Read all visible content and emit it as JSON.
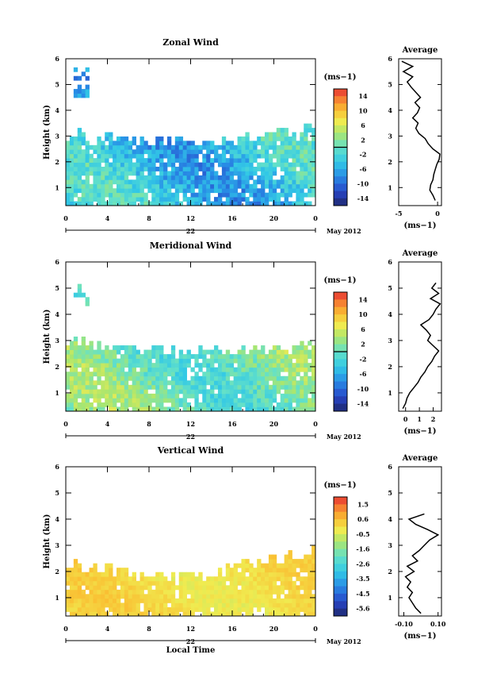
{
  "chart_data": [
    {
      "type": "heatmap",
      "title": "Zonal Wind",
      "ylabel": "Height (km)",
      "x_ticks": [
        "0",
        "4",
        "8",
        "12",
        "16",
        "20",
        "0"
      ],
      "y_ticks": [
        "1",
        "2",
        "3",
        "4",
        "5",
        "6"
      ],
      "xlim": [
        0,
        24
      ],
      "ylim": [
        0.3,
        6
      ],
      "date_label": "22",
      "month_label": "May 2012",
      "colorbar": {
        "unit": "(ms−1)",
        "tick_labels": [
          "14",
          "10",
          "6",
          "2",
          "-2",
          "-6",
          "-10",
          "-14"
        ],
        "min": -16,
        "max": 16,
        "zero_line": 0
      },
      "field": {
        "seed": 11,
        "base": -4,
        "amp": 6,
        "top_left": 3.1,
        "top_mid": 2.7,
        "top_right": 3.3,
        "sparse_patch": [
          0.6,
          2.0,
          4.5,
          5.6
        ]
      },
      "profile": {
        "title": "Average",
        "x_ticks": [
          "-5",
          "0"
        ],
        "xlim": [
          -5,
          0.5
        ],
        "unit": "(ms−1)",
        "heights": [
          0.5,
          0.7,
          0.9,
          1.1,
          1.3,
          1.5,
          1.7,
          1.9,
          2.1,
          2.3,
          2.5,
          2.7,
          2.9,
          3.1,
          3.3,
          3.5,
          3.7,
          3.9,
          4.1,
          4.3,
          4.5,
          4.7,
          4.9,
          5.1,
          5.3,
          5.5,
          5.7,
          5.9
        ],
        "values": [
          -0.3,
          -0.6,
          -1.0,
          -0.9,
          -0.6,
          -0.5,
          -0.3,
          -0.1,
          0.2,
          0.3,
          -0.6,
          -1.2,
          -1.6,
          -2.4,
          -2.8,
          -2.5,
          -3.2,
          -2.6,
          -2.3,
          -2.9,
          -2.2,
          -2.8,
          -3.4,
          -3.9,
          -3.2,
          -4.4,
          -3.2,
          -4.6
        ]
      }
    },
    {
      "type": "heatmap",
      "title": "Meridional Wind",
      "ylabel": "Height (km)",
      "x_ticks": [
        "0",
        "4",
        "8",
        "12",
        "16",
        "20",
        "0"
      ],
      "y_ticks": [
        "1",
        "2",
        "3",
        "4",
        "5",
        "6"
      ],
      "xlim": [
        0,
        24
      ],
      "ylim": [
        0.3,
        6
      ],
      "date_label": "22",
      "month_label": "May 2012",
      "colorbar": {
        "unit": "(ms−1)",
        "tick_labels": [
          "14",
          "10",
          "6",
          "2",
          "-2",
          "-6",
          "-10",
          "-14"
        ],
        "min": -16,
        "max": 16,
        "zero_line": 0
      },
      "field": {
        "seed": 27,
        "base": 1,
        "amp": 5,
        "top_left": 2.9,
        "top_mid": 2.5,
        "top_right": 2.8,
        "sparse_patch": [
          0.6,
          2.0,
          4.4,
          5.1
        ]
      },
      "profile": {
        "title": "Average",
        "x_ticks": [
          "0",
          "1",
          "2"
        ],
        "xlim": [
          -0.5,
          2.6
        ],
        "unit": "(ms−1)",
        "heights": [
          0.4,
          0.6,
          0.8,
          1.0,
          1.2,
          1.4,
          1.6,
          1.8,
          2.0,
          2.2,
          2.4,
          2.6,
          2.8,
          3.0,
          3.2,
          3.4,
          3.6,
          3.8,
          4.0,
          4.2,
          4.4,
          4.6,
          4.8,
          5.0,
          5.2
        ],
        "values": [
          -0.2,
          0.0,
          0.1,
          0.3,
          0.6,
          0.9,
          1.1,
          1.4,
          1.6,
          1.9,
          2.1,
          2.4,
          2.0,
          1.6,
          1.8,
          1.5,
          1.1,
          1.7,
          2.0,
          2.2,
          2.5,
          1.8,
          2.4,
          1.9,
          2.2
        ]
      }
    },
    {
      "type": "heatmap",
      "title": "Vertical Wind",
      "ylabel": "Height (km)",
      "xlabel": "Local Time",
      "x_ticks": [
        "0",
        "4",
        "8",
        "12",
        "16",
        "20",
        "0"
      ],
      "y_ticks": [
        "1",
        "2",
        "3",
        "4",
        "5",
        "6"
      ],
      "xlim": [
        0,
        24
      ],
      "ylim": [
        0.3,
        6
      ],
      "date_label": "22",
      "month_label": "May 2012",
      "colorbar": {
        "unit": "(ms−1)",
        "tick_labels": [
          "1.5",
          "0.6",
          "-0.5",
          "-1.6",
          "-2.6",
          "-3.5",
          "-4.5",
          "-5.6"
        ],
        "min": -6.1,
        "max": 2.0
      },
      "field": {
        "seed": 53,
        "base": 0.0,
        "amp": 0.5,
        "top_left": 2.2,
        "top_mid": 1.8,
        "top_right": 2.8,
        "sparse_patch": [
          1.2,
          2.0,
          3.8,
          4.2
        ]
      },
      "profile": {
        "title": "Average",
        "x_ticks": [
          "-0.10",
          "0.10"
        ],
        "xlim": [
          -0.13,
          0.12
        ],
        "unit": "(ms−1)",
        "heights": [
          0.4,
          0.6,
          0.8,
          1.0,
          1.2,
          1.4,
          1.6,
          1.8,
          2.0,
          2.2,
          2.4,
          2.6,
          2.8,
          3.0,
          3.2,
          3.4,
          3.6,
          3.8,
          4.0,
          4.2
        ],
        "values": [
          0.0,
          -0.03,
          -0.05,
          -0.07,
          -0.05,
          -0.08,
          -0.06,
          -0.09,
          -0.04,
          -0.08,
          -0.02,
          -0.05,
          -0.01,
          0.02,
          0.05,
          0.1,
          0.04,
          -0.03,
          -0.07,
          0.02
        ]
      }
    }
  ]
}
